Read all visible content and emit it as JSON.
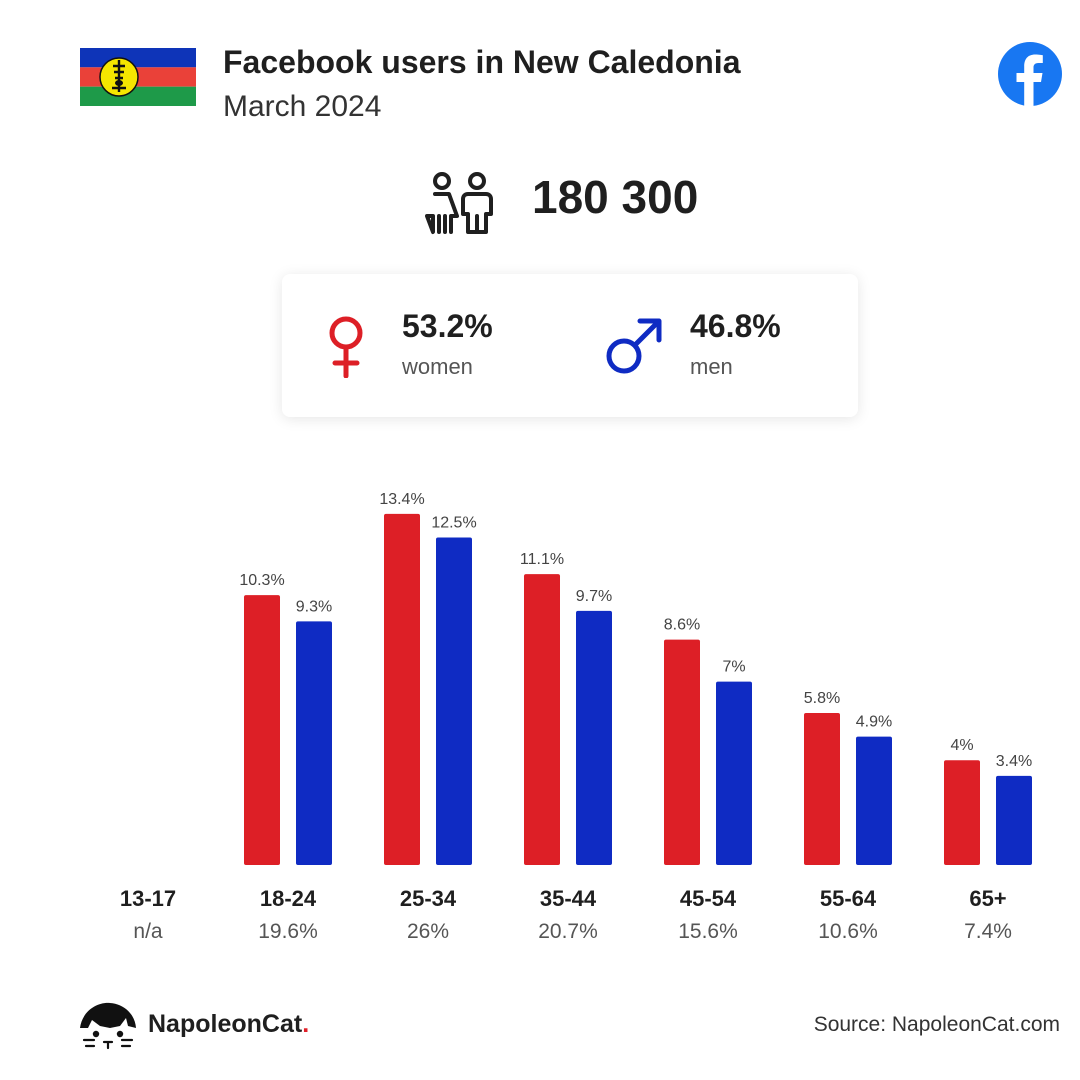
{
  "header": {
    "title": "Facebook users in New Caledonia",
    "subtitle": "March 2024"
  },
  "summary": {
    "total_users": "180 300",
    "women_pct": "53.2%",
    "women_label": "women",
    "men_pct": "46.8%",
    "men_label": "men"
  },
  "footer": {
    "brand_name": "NapoleonCat",
    "brand_dot": ".",
    "source": "Source: NapoleonCat.com"
  },
  "icons": {
    "flag": "new-caledonia-flag-icon",
    "facebook": "facebook-logo-icon",
    "users": "users-icon",
    "female": "female-symbol-icon",
    "male": "male-symbol-icon",
    "brand": "napoleoncat-logo-icon"
  },
  "colors": {
    "women": "#dd1f26",
    "men": "#0f2bc3",
    "facebook": "#1877f2"
  },
  "chart_data": {
    "type": "bar",
    "categories": [
      "13-17",
      "18-24",
      "25-34",
      "35-44",
      "45-54",
      "55-64",
      "65+"
    ],
    "category_totals": [
      "n/a",
      "19.6%",
      "26%",
      "20.7%",
      "15.6%",
      "10.6%",
      "7.4%"
    ],
    "series": [
      {
        "name": "women",
        "values": [
          null,
          10.3,
          13.4,
          11.1,
          8.6,
          5.8,
          4
        ],
        "labels": [
          "",
          "10.3%",
          "13.4%",
          "11.1%",
          "8.6%",
          "5.8%",
          "4%"
        ]
      },
      {
        "name": "men",
        "values": [
          null,
          9.3,
          12.5,
          9.7,
          7,
          4.9,
          3.4
        ],
        "labels": [
          "",
          "9.3%",
          "12.5%",
          "9.7%",
          "7%",
          "4.9%",
          "3.4%"
        ]
      }
    ],
    "grid": false,
    "legend": "none"
  }
}
